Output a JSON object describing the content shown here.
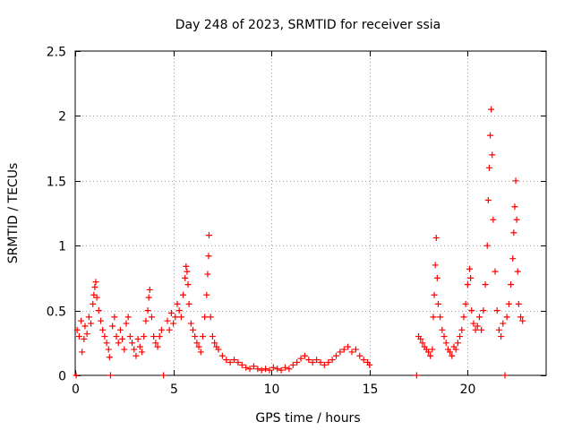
{
  "colors": {
    "series": "#ff0000",
    "grid": "#a0a0a0",
    "axis": "#000000",
    "background": "#ffffff"
  },
  "chart_data": {
    "type": "scatter",
    "title": "Day 248 of 2023, SRMTID for receiver ssia",
    "xlabel": "GPS time / hours",
    "ylabel": "SRMTID / TECUs",
    "xlim": [
      0,
      24
    ],
    "ylim": [
      0,
      2.5
    ],
    "xticks": [
      0,
      5,
      10,
      15,
      20
    ],
    "yticks": [
      0,
      0.5,
      1,
      1.5,
      2,
      2.5
    ],
    "xtick_labels": [
      "0",
      "5",
      "10",
      "15",
      "20"
    ],
    "ytick_labels": [
      "0",
      "0.5",
      "1",
      "1.5",
      "2",
      "2.5"
    ],
    "grid": true,
    "marker": "+",
    "series": [
      {
        "name": "SRMTID",
        "color": "#ff0000",
        "points": [
          [
            0.05,
            0.0
          ],
          [
            0.1,
            0.35
          ],
          [
            0.2,
            0.3
          ],
          [
            0.3,
            0.42
          ],
          [
            0.35,
            0.18
          ],
          [
            0.45,
            0.28
          ],
          [
            0.5,
            0.38
          ],
          [
            0.6,
            0.32
          ],
          [
            0.7,
            0.45
          ],
          [
            0.8,
            0.4
          ],
          [
            0.9,
            0.55
          ],
          [
            0.95,
            0.62
          ],
          [
            1.0,
            0.68
          ],
          [
            1.05,
            0.72
          ],
          [
            1.1,
            0.6
          ],
          [
            1.2,
            0.5
          ],
          [
            1.3,
            0.42
          ],
          [
            1.4,
            0.35
          ],
          [
            1.5,
            0.3
          ],
          [
            1.6,
            0.25
          ],
          [
            1.7,
            0.2
          ],
          [
            1.75,
            0.14
          ],
          [
            1.8,
            0.0
          ],
          [
            1.9,
            0.38
          ],
          [
            2.0,
            0.45
          ],
          [
            2.1,
            0.3
          ],
          [
            2.2,
            0.25
          ],
          [
            2.3,
            0.35
          ],
          [
            2.4,
            0.28
          ],
          [
            2.5,
            0.2
          ],
          [
            2.6,
            0.4
          ],
          [
            2.7,
            0.45
          ],
          [
            2.8,
            0.3
          ],
          [
            2.9,
            0.25
          ],
          [
            3.0,
            0.2
          ],
          [
            3.1,
            0.15
          ],
          [
            3.2,
            0.28
          ],
          [
            3.3,
            0.22
          ],
          [
            3.4,
            0.18
          ],
          [
            3.5,
            0.3
          ],
          [
            3.6,
            0.42
          ],
          [
            3.7,
            0.5
          ],
          [
            3.75,
            0.6
          ],
          [
            3.8,
            0.66
          ],
          [
            3.9,
            0.45
          ],
          [
            4.0,
            0.3
          ],
          [
            4.1,
            0.25
          ],
          [
            4.2,
            0.22
          ],
          [
            4.3,
            0.3
          ],
          [
            4.4,
            0.35
          ],
          [
            4.5,
            0.0
          ],
          [
            4.7,
            0.42
          ],
          [
            4.8,
            0.35
          ],
          [
            4.9,
            0.48
          ],
          [
            5.0,
            0.4
          ],
          [
            5.1,
            0.45
          ],
          [
            5.2,
            0.55
          ],
          [
            5.3,
            0.5
          ],
          [
            5.4,
            0.45
          ],
          [
            5.5,
            0.62
          ],
          [
            5.6,
            0.75
          ],
          [
            5.65,
            0.84
          ],
          [
            5.7,
            0.8
          ],
          [
            5.75,
            0.7
          ],
          [
            5.8,
            0.55
          ],
          [
            5.9,
            0.4
          ],
          [
            6.0,
            0.35
          ],
          [
            6.1,
            0.3
          ],
          [
            6.2,
            0.25
          ],
          [
            6.3,
            0.22
          ],
          [
            6.4,
            0.18
          ],
          [
            6.5,
            0.3
          ],
          [
            6.6,
            0.45
          ],
          [
            6.7,
            0.62
          ],
          [
            6.75,
            0.78
          ],
          [
            6.8,
            0.92
          ],
          [
            6.82,
            1.08
          ],
          [
            6.9,
            0.45
          ],
          [
            7.0,
            0.3
          ],
          [
            7.1,
            0.25
          ],
          [
            7.2,
            0.22
          ],
          [
            7.3,
            0.2
          ],
          [
            7.5,
            0.15
          ],
          [
            7.7,
            0.12
          ],
          [
            7.9,
            0.1
          ],
          [
            8.1,
            0.12
          ],
          [
            8.3,
            0.1
          ],
          [
            8.5,
            0.08
          ],
          [
            8.7,
            0.06
          ],
          [
            8.9,
            0.05
          ],
          [
            9.1,
            0.07
          ],
          [
            9.3,
            0.05
          ],
          [
            9.5,
            0.04
          ],
          [
            9.7,
            0.05
          ],
          [
            9.9,
            0.04
          ],
          [
            10.1,
            0.06
          ],
          [
            10.3,
            0.05
          ],
          [
            10.5,
            0.04
          ],
          [
            10.7,
            0.06
          ],
          [
            10.9,
            0.05
          ],
          [
            11.1,
            0.08
          ],
          [
            11.3,
            0.1
          ],
          [
            11.5,
            0.13
          ],
          [
            11.7,
            0.15
          ],
          [
            11.9,
            0.12
          ],
          [
            12.1,
            0.1
          ],
          [
            12.3,
            0.12
          ],
          [
            12.5,
            0.1
          ],
          [
            12.7,
            0.08
          ],
          [
            12.9,
            0.1
          ],
          [
            13.1,
            0.12
          ],
          [
            13.3,
            0.15
          ],
          [
            13.5,
            0.18
          ],
          [
            13.7,
            0.2
          ],
          [
            13.9,
            0.22
          ],
          [
            14.1,
            0.18
          ],
          [
            14.3,
            0.2
          ],
          [
            14.5,
            0.15
          ],
          [
            14.7,
            0.12
          ],
          [
            14.9,
            0.1
          ],
          [
            15.0,
            0.08
          ],
          [
            17.4,
            0.0
          ],
          [
            17.5,
            0.3
          ],
          [
            17.6,
            0.28
          ],
          [
            17.7,
            0.25
          ],
          [
            17.8,
            0.22
          ],
          [
            17.9,
            0.2
          ],
          [
            18.0,
            0.18
          ],
          [
            18.1,
            0.15
          ],
          [
            18.2,
            0.2
          ],
          [
            18.25,
            0.45
          ],
          [
            18.3,
            0.62
          ],
          [
            18.35,
            0.85
          ],
          [
            18.4,
            1.06
          ],
          [
            18.45,
            0.75
          ],
          [
            18.5,
            0.55
          ],
          [
            18.6,
            0.45
          ],
          [
            18.7,
            0.35
          ],
          [
            18.8,
            0.3
          ],
          [
            18.9,
            0.25
          ],
          [
            19.0,
            0.2
          ],
          [
            19.1,
            0.18
          ],
          [
            19.2,
            0.15
          ],
          [
            19.3,
            0.22
          ],
          [
            19.4,
            0.2
          ],
          [
            19.5,
            0.25
          ],
          [
            19.6,
            0.3
          ],
          [
            19.7,
            0.35
          ],
          [
            19.8,
            0.45
          ],
          [
            19.9,
            0.55
          ],
          [
            20.0,
            0.7
          ],
          [
            20.1,
            0.82
          ],
          [
            20.15,
            0.75
          ],
          [
            20.2,
            0.5
          ],
          [
            20.3,
            0.4
          ],
          [
            20.4,
            0.35
          ],
          [
            20.5,
            0.38
          ],
          [
            20.6,
            0.45
          ],
          [
            20.7,
            0.35
          ],
          [
            20.8,
            0.5
          ],
          [
            20.9,
            0.7
          ],
          [
            21.0,
            1.0
          ],
          [
            21.05,
            1.35
          ],
          [
            21.1,
            1.6
          ],
          [
            21.15,
            1.85
          ],
          [
            21.2,
            2.05
          ],
          [
            21.25,
            1.7
          ],
          [
            21.3,
            1.2
          ],
          [
            21.4,
            0.8
          ],
          [
            21.5,
            0.5
          ],
          [
            21.6,
            0.35
          ],
          [
            21.7,
            0.3
          ],
          [
            21.8,
            0.4
          ],
          [
            21.9,
            0.0
          ],
          [
            22.0,
            0.45
          ],
          [
            22.1,
            0.55
          ],
          [
            22.2,
            0.7
          ],
          [
            22.3,
            0.9
          ],
          [
            22.35,
            1.1
          ],
          [
            22.4,
            1.3
          ],
          [
            22.45,
            1.5
          ],
          [
            22.5,
            1.2
          ],
          [
            22.55,
            0.8
          ],
          [
            22.6,
            0.55
          ],
          [
            22.7,
            0.45
          ],
          [
            22.8,
            0.42
          ]
        ]
      }
    ]
  }
}
